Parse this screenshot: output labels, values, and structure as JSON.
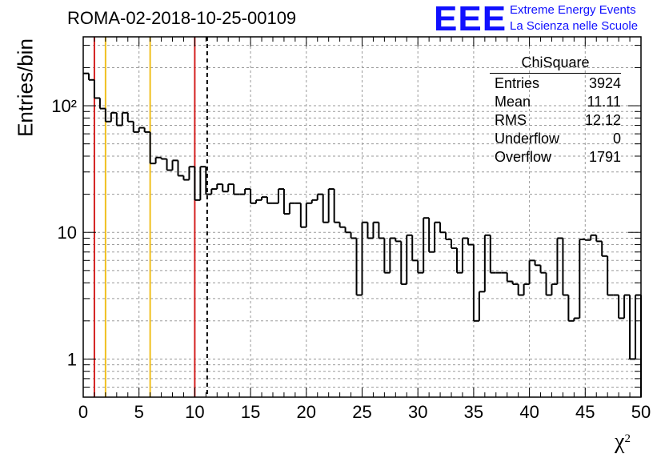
{
  "chart_data": {
    "type": "histogram",
    "title": "ROMA-02-2018-10-25-00109",
    "xlabel": "χ",
    "xlabel_superscript": "2",
    "ylabel": "Entries/bin",
    "xlim": [
      0,
      50
    ],
    "ylim": [
      0.5,
      350
    ],
    "yscale": "log",
    "grid": true,
    "bin_width": 0.5,
    "x_ticks": [
      "0",
      "5",
      "10",
      "15",
      "20",
      "25",
      "30",
      "35",
      "40",
      "45",
      "50"
    ],
    "y_ticks": [
      {
        "value": 1,
        "label": "1"
      },
      {
        "value": 10,
        "label": "10"
      },
      {
        "value": 100,
        "label": "10²"
      }
    ],
    "bins": [
      {
        "x": 0.0,
        "y": 180
      },
      {
        "x": 0.5,
        "y": 160
      },
      {
        "x": 1.0,
        "y": 115
      },
      {
        "x": 1.5,
        "y": 95
      },
      {
        "x": 2.0,
        "y": 75
      },
      {
        "x": 2.5,
        "y": 88
      },
      {
        "x": 3.0,
        "y": 70
      },
      {
        "x": 3.5,
        "y": 88
      },
      {
        "x": 4.0,
        "y": 75
      },
      {
        "x": 4.5,
        "y": 62
      },
      {
        "x": 5.0,
        "y": 67
      },
      {
        "x": 5.5,
        "y": 62
      },
      {
        "x": 6.0,
        "y": 35
      },
      {
        "x": 6.5,
        "y": 39
      },
      {
        "x": 7.0,
        "y": 38
      },
      {
        "x": 7.5,
        "y": 31
      },
      {
        "x": 8.0,
        "y": 37
      },
      {
        "x": 8.5,
        "y": 28
      },
      {
        "x": 9.0,
        "y": 26
      },
      {
        "x": 9.5,
        "y": 33
      },
      {
        "x": 10.0,
        "y": 18
      },
      {
        "x": 10.5,
        "y": 33
      },
      {
        "x": 11.0,
        "y": 20
      },
      {
        "x": 11.5,
        "y": 22
      },
      {
        "x": 12.0,
        "y": 24
      },
      {
        "x": 12.5,
        "y": 21
      },
      {
        "x": 13.0,
        "y": 24
      },
      {
        "x": 13.5,
        "y": 20
      },
      {
        "x": 14.0,
        "y": 20
      },
      {
        "x": 14.5,
        "y": 22
      },
      {
        "x": 15.0,
        "y": 17
      },
      {
        "x": 15.5,
        "y": 18
      },
      {
        "x": 16.0,
        "y": 19
      },
      {
        "x": 16.5,
        "y": 17
      },
      {
        "x": 17.0,
        "y": 17
      },
      {
        "x": 17.5,
        "y": 22
      },
      {
        "x": 18.0,
        "y": 14
      },
      {
        "x": 18.5,
        "y": 17
      },
      {
        "x": 19.0,
        "y": 17
      },
      {
        "x": 19.5,
        "y": 11
      },
      {
        "x": 20.0,
        "y": 17
      },
      {
        "x": 20.5,
        "y": 18
      },
      {
        "x": 21.0,
        "y": 20
      },
      {
        "x": 21.5,
        "y": 12
      },
      {
        "x": 22.0,
        "y": 22
      },
      {
        "x": 22.5,
        "y": 12
      },
      {
        "x": 23.0,
        "y": 11
      },
      {
        "x": 23.5,
        "y": 10
      },
      {
        "x": 24.0,
        "y": 9
      },
      {
        "x": 24.5,
        "y": 3.2
      },
      {
        "x": 25.0,
        "y": 12
      },
      {
        "x": 25.5,
        "y": 9
      },
      {
        "x": 26.0,
        "y": 12
      },
      {
        "x": 26.5,
        "y": 9
      },
      {
        "x": 27.0,
        "y": 4.8
      },
      {
        "x": 27.5,
        "y": 9
      },
      {
        "x": 28.0,
        "y": 8.5
      },
      {
        "x": 28.5,
        "y": 3.9
      },
      {
        "x": 29.0,
        "y": 9.5
      },
      {
        "x": 29.5,
        "y": 6
      },
      {
        "x": 30.0,
        "y": 4.8
      },
      {
        "x": 30.5,
        "y": 13
      },
      {
        "x": 31.0,
        "y": 7
      },
      {
        "x": 31.5,
        "y": 12
      },
      {
        "x": 32.0,
        "y": 10
      },
      {
        "x": 32.5,
        "y": 8.8
      },
      {
        "x": 33.0,
        "y": 7.5
      },
      {
        "x": 33.5,
        "y": 4.8
      },
      {
        "x": 34.0,
        "y": 9
      },
      {
        "x": 34.5,
        "y": 8
      },
      {
        "x": 35.0,
        "y": 2
      },
      {
        "x": 35.5,
        "y": 3.4
      },
      {
        "x": 36.0,
        "y": 9.5
      },
      {
        "x": 36.5,
        "y": 4.8
      },
      {
        "x": 37.0,
        "y": 4.8
      },
      {
        "x": 37.5,
        "y": 4.8
      },
      {
        "x": 38.0,
        "y": 4.1
      },
      {
        "x": 38.5,
        "y": 3.9
      },
      {
        "x": 39.0,
        "y": 3.2
      },
      {
        "x": 39.5,
        "y": 3.9
      },
      {
        "x": 40.0,
        "y": 6
      },
      {
        "x": 40.5,
        "y": 5.5
      },
      {
        "x": 41.0,
        "y": 4.8
      },
      {
        "x": 41.5,
        "y": 3.2
      },
      {
        "x": 42.0,
        "y": 3.9
      },
      {
        "x": 42.5,
        "y": 9
      },
      {
        "x": 43.0,
        "y": 3.2
      },
      {
        "x": 43.5,
        "y": 2
      },
      {
        "x": 44.0,
        "y": 2.1
      },
      {
        "x": 44.5,
        "y": 8.8
      },
      {
        "x": 45.0,
        "y": 8.7
      },
      {
        "x": 45.5,
        "y": 9.5
      },
      {
        "x": 46.0,
        "y": 8.5
      },
      {
        "x": 46.5,
        "y": 6.5
      },
      {
        "x": 47.0,
        "y": 3.2
      },
      {
        "x": 47.5,
        "y": 3.2
      },
      {
        "x": 48.0,
        "y": 2.1
      },
      {
        "x": 48.5,
        "y": 3.2
      },
      {
        "x": 49.0,
        "y": 1.0
      },
      {
        "x": 49.5,
        "y": 3.2
      }
    ],
    "vertical_lines": [
      {
        "x": 1,
        "color": "#d42020",
        "style": "solid"
      },
      {
        "x": 2,
        "color": "#f0c020",
        "style": "solid"
      },
      {
        "x": 6,
        "color": "#f0c020",
        "style": "solid"
      },
      {
        "x": 10,
        "color": "#d42020",
        "style": "solid"
      },
      {
        "x": 11.11,
        "color": "#000000",
        "style": "dashed"
      }
    ],
    "stats": {
      "title": "ChiSquare",
      "rows": [
        {
          "key": "Entries",
          "value": "3924"
        },
        {
          "key": "Mean",
          "value": "11.11"
        },
        {
          "key": "RMS",
          "value": "12.12"
        },
        {
          "key": "Underflow",
          "value": "0"
        },
        {
          "key": "Overflow",
          "value": "1791"
        }
      ]
    }
  },
  "logo": {
    "letters": "EEE",
    "line1": "Extreme Energy Events",
    "line2": "La Scienza nelle Scuole",
    "color": "#1010ff"
  }
}
